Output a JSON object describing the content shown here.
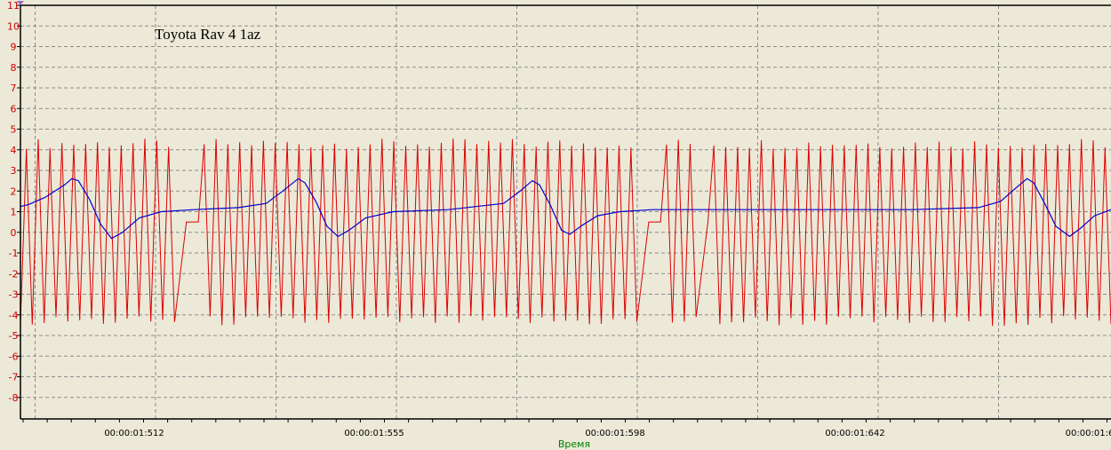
{
  "chart_data": {
    "type": "line",
    "title": "Toyota Rav 4 1az",
    "xlabel": "Время",
    "ylabel": "",
    "ylim": [
      -9,
      11
    ],
    "yticks": [
      11,
      10,
      9,
      8,
      7,
      6,
      5,
      4,
      3,
      2,
      1,
      0,
      -1,
      -2,
      -3,
      -4,
      -5,
      -6,
      -7,
      -8
    ],
    "xticks": [
      "00:00:01:512",
      "00:00:01:555",
      "00:00:01:598",
      "00:00:01:642",
      "00:00:01:6"
    ],
    "grid": true,
    "legend": "none",
    "colors": {
      "background": "#ece9d8",
      "grid": "#8c8c8c",
      "axis": "#000000",
      "ytick_text": "#cc0000",
      "xlabel_text": "#008000",
      "series_red": "#dd0000",
      "series_blue": "#0000cc"
    },
    "x_range_ms": [
      1488.5,
      1686.0
    ],
    "series": [
      {
        "color": "#dd0000",
        "waveform": "oscillating signal",
        "amplitude_range": [
          -4.3,
          4.3
        ],
        "approx_cycles": 92,
        "gaps_at_ms": [
          1518.0,
          1603.0,
          1612.0
        ]
      },
      {
        "color": "#0000cc",
        "points": [
          [
            1488.5,
            1.25
          ],
          [
            1490.0,
            1.35
          ],
          [
            1493.0,
            1.7
          ],
          [
            1496.5,
            2.3
          ],
          [
            1497.8,
            2.6
          ],
          [
            1499.0,
            2.5
          ],
          [
            1501.0,
            1.6
          ],
          [
            1503.0,
            0.4
          ],
          [
            1505.0,
            -0.3
          ],
          [
            1507.0,
            0.0
          ],
          [
            1510.0,
            0.7
          ],
          [
            1514.0,
            1.0
          ],
          [
            1520.0,
            1.1
          ],
          [
            1528.0,
            1.2
          ],
          [
            1533.0,
            1.4
          ],
          [
            1536.0,
            2.0
          ],
          [
            1538.8,
            2.6
          ],
          [
            1540.0,
            2.4
          ],
          [
            1542.0,
            1.5
          ],
          [
            1544.0,
            0.3
          ],
          [
            1546.0,
            -0.2
          ],
          [
            1548.0,
            0.1
          ],
          [
            1551.0,
            0.7
          ],
          [
            1556.0,
            1.0
          ],
          [
            1566.0,
            1.1
          ],
          [
            1576.0,
            1.4
          ],
          [
            1579.0,
            2.0
          ],
          [
            1581.2,
            2.5
          ],
          [
            1582.5,
            2.3
          ],
          [
            1584.5,
            1.3
          ],
          [
            1586.5,
            0.1
          ],
          [
            1588.0,
            -0.1
          ],
          [
            1590.0,
            0.3
          ],
          [
            1593.0,
            0.8
          ],
          [
            1597.0,
            1.0
          ],
          [
            1603.0,
            1.1
          ],
          [
            1625.0,
            1.1
          ],
          [
            1650.0,
            1.1
          ],
          [
            1662.0,
            1.2
          ],
          [
            1666.0,
            1.5
          ],
          [
            1669.0,
            2.2
          ],
          [
            1670.8,
            2.6
          ],
          [
            1672.0,
            2.4
          ],
          [
            1674.0,
            1.4
          ],
          [
            1676.0,
            0.3
          ],
          [
            1678.5,
            -0.2
          ],
          [
            1680.5,
            0.2
          ],
          [
            1683.0,
            0.8
          ],
          [
            1686.0,
            1.1
          ]
        ]
      }
    ]
  }
}
